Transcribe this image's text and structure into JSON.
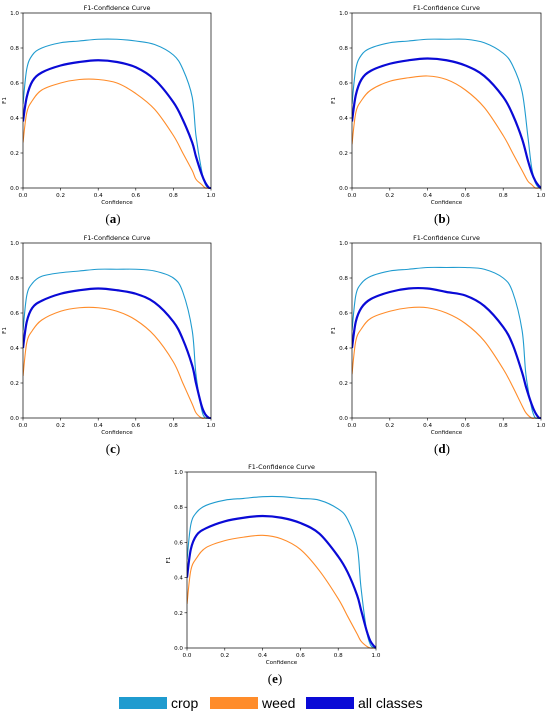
{
  "colors": {
    "crop": "#1f9bcf",
    "weed": "#ff8c2a",
    "all": "#0a0ad6"
  },
  "legend": [
    {
      "label": "crop",
      "color": "#1f9bcf"
    },
    {
      "label": "weed",
      "color": "#ff8c2a"
    },
    {
      "label": "all classes",
      "color": "#0a0ad6"
    }
  ],
  "chart_data": [
    {
      "type": "line",
      "caption_letter": "a",
      "title": "F1-Confidence Curve",
      "xlabel": "Confidence",
      "ylabel": "F1",
      "xlim": [
        0,
        1
      ],
      "ylim": [
        0,
        1
      ],
      "xticks": [
        "0.0",
        "0.2",
        "0.4",
        "0.6",
        "0.8",
        "1.0"
      ],
      "yticks": [
        "0.0",
        "0.2",
        "0.4",
        "0.6",
        "0.8",
        "1.0"
      ],
      "x": [
        0,
        0.02,
        0.05,
        0.1,
        0.2,
        0.3,
        0.4,
        0.5,
        0.6,
        0.7,
        0.8,
        0.85,
        0.9,
        0.92,
        0.95,
        0.97,
        0.99,
        1.0
      ],
      "series": [
        {
          "name": "crop",
          "values": [
            0.48,
            0.68,
            0.76,
            0.8,
            0.83,
            0.84,
            0.85,
            0.85,
            0.84,
            0.82,
            0.76,
            0.68,
            0.52,
            0.3,
            0.1,
            0.02,
            0.0,
            0.0
          ]
        },
        {
          "name": "weed",
          "values": [
            0.26,
            0.43,
            0.5,
            0.56,
            0.6,
            0.62,
            0.62,
            0.6,
            0.54,
            0.45,
            0.3,
            0.2,
            0.1,
            0.05,
            0.02,
            0.0,
            0.0,
            0.0
          ]
        },
        {
          "name": "all classes",
          "values": [
            0.38,
            0.52,
            0.61,
            0.66,
            0.7,
            0.72,
            0.73,
            0.72,
            0.69,
            0.62,
            0.49,
            0.39,
            0.26,
            0.18,
            0.08,
            0.03,
            0.0,
            0.0
          ]
        }
      ]
    },
    {
      "type": "line",
      "caption_letter": "b",
      "title": "F1-Confidence Curve",
      "xlabel": "Confidence",
      "ylabel": "F1",
      "xlim": [
        0,
        1
      ],
      "ylim": [
        0,
        1
      ],
      "xticks": [
        "0.0",
        "0.2",
        "0.4",
        "0.6",
        "0.8",
        "1.0"
      ],
      "yticks": [
        "0.0",
        "0.2",
        "0.4",
        "0.6",
        "0.8",
        "1.0"
      ],
      "x": [
        0,
        0.02,
        0.05,
        0.1,
        0.2,
        0.3,
        0.4,
        0.5,
        0.6,
        0.7,
        0.8,
        0.85,
        0.9,
        0.93,
        0.95,
        0.97,
        0.99,
        1.0
      ],
      "series": [
        {
          "name": "crop",
          "values": [
            0.48,
            0.68,
            0.76,
            0.8,
            0.83,
            0.84,
            0.85,
            0.85,
            0.85,
            0.83,
            0.77,
            0.7,
            0.55,
            0.3,
            0.12,
            0.03,
            0.0,
            0.0
          ]
        },
        {
          "name": "weed",
          "values": [
            0.25,
            0.43,
            0.5,
            0.56,
            0.61,
            0.63,
            0.64,
            0.62,
            0.56,
            0.46,
            0.3,
            0.2,
            0.1,
            0.04,
            0.02,
            0.0,
            0.0,
            0.0
          ]
        },
        {
          "name": "all classes",
          "values": [
            0.38,
            0.53,
            0.62,
            0.67,
            0.71,
            0.73,
            0.74,
            0.73,
            0.7,
            0.64,
            0.52,
            0.42,
            0.28,
            0.16,
            0.09,
            0.04,
            0.01,
            0.0
          ]
        }
      ]
    },
    {
      "type": "line",
      "caption_letter": "c",
      "title": "F1-Confidence Curve",
      "xlabel": "Confidence",
      "ylabel": "F1",
      "xlim": [
        0,
        1
      ],
      "ylim": [
        0,
        1
      ],
      "xticks": [
        "0.0",
        "0.2",
        "0.4",
        "0.6",
        "0.8",
        "1.0"
      ],
      "yticks": [
        "0.0",
        "0.2",
        "0.4",
        "0.6",
        "0.8",
        "1.0"
      ],
      "x": [
        0,
        0.02,
        0.05,
        0.1,
        0.2,
        0.3,
        0.4,
        0.5,
        0.6,
        0.7,
        0.8,
        0.85,
        0.9,
        0.92,
        0.95,
        0.97,
        0.99,
        1.0
      ],
      "series": [
        {
          "name": "crop",
          "values": [
            0.5,
            0.7,
            0.77,
            0.81,
            0.83,
            0.84,
            0.85,
            0.85,
            0.85,
            0.84,
            0.8,
            0.72,
            0.5,
            0.25,
            0.05,
            0.0,
            0.0,
            0.0
          ]
        },
        {
          "name": "weed",
          "values": [
            0.24,
            0.43,
            0.5,
            0.56,
            0.61,
            0.63,
            0.63,
            0.61,
            0.56,
            0.47,
            0.32,
            0.2,
            0.08,
            0.03,
            0.0,
            0.0,
            0.0,
            0.0
          ]
        },
        {
          "name": "all classes",
          "values": [
            0.4,
            0.55,
            0.63,
            0.67,
            0.71,
            0.73,
            0.74,
            0.73,
            0.71,
            0.66,
            0.55,
            0.45,
            0.3,
            0.2,
            0.07,
            0.02,
            0.0,
            0.0
          ]
        }
      ]
    },
    {
      "type": "line",
      "caption_letter": "d",
      "title": "F1-Confidence Curve",
      "xlabel": "Confidence",
      "ylabel": "F1",
      "xlim": [
        0,
        1
      ],
      "ylim": [
        0,
        1
      ],
      "xticks": [
        "0.0",
        "0.2",
        "0.4",
        "0.6",
        "0.8",
        "1.0"
      ],
      "yticks": [
        "0.0",
        "0.2",
        "0.4",
        "0.6",
        "0.8",
        "1.0"
      ],
      "x": [
        0,
        0.02,
        0.05,
        0.1,
        0.2,
        0.3,
        0.4,
        0.5,
        0.6,
        0.7,
        0.8,
        0.85,
        0.9,
        0.92,
        0.95,
        0.97,
        0.99,
        1.0
      ],
      "series": [
        {
          "name": "crop",
          "values": [
            0.5,
            0.7,
            0.77,
            0.81,
            0.84,
            0.85,
            0.86,
            0.86,
            0.86,
            0.85,
            0.8,
            0.72,
            0.5,
            0.25,
            0.06,
            0.0,
            0.0,
            0.0
          ]
        },
        {
          "name": "weed",
          "values": [
            0.25,
            0.44,
            0.51,
            0.57,
            0.61,
            0.63,
            0.63,
            0.6,
            0.54,
            0.44,
            0.28,
            0.18,
            0.07,
            0.03,
            0.0,
            0.0,
            0.0,
            0.0
          ]
        },
        {
          "name": "all classes",
          "values": [
            0.4,
            0.55,
            0.63,
            0.68,
            0.72,
            0.74,
            0.74,
            0.72,
            0.7,
            0.64,
            0.52,
            0.42,
            0.26,
            0.18,
            0.08,
            0.03,
            0.0,
            0.0
          ]
        }
      ]
    },
    {
      "type": "line",
      "caption_letter": "e",
      "title": "F1-Confidence Curve",
      "xlabel": "Confidence",
      "ylabel": "F1",
      "xlim": [
        0,
        1
      ],
      "ylim": [
        0,
        1
      ],
      "xticks": [
        "0.0",
        "0.2",
        "0.4",
        "0.6",
        "0.8",
        "1.0"
      ],
      "yticks": [
        "0.0",
        "0.2",
        "0.4",
        "0.6",
        "0.8",
        "1.0"
      ],
      "x": [
        0,
        0.02,
        0.05,
        0.1,
        0.2,
        0.3,
        0.4,
        0.5,
        0.6,
        0.7,
        0.8,
        0.85,
        0.9,
        0.92,
        0.95,
        0.97,
        0.99,
        1.0
      ],
      "series": [
        {
          "name": "crop",
          "values": [
            0.5,
            0.7,
            0.77,
            0.81,
            0.84,
            0.85,
            0.86,
            0.86,
            0.85,
            0.84,
            0.79,
            0.73,
            0.58,
            0.35,
            0.1,
            0.02,
            0.0,
            0.0
          ]
        },
        {
          "name": "weed",
          "values": [
            0.25,
            0.44,
            0.51,
            0.57,
            0.61,
            0.63,
            0.64,
            0.62,
            0.56,
            0.44,
            0.28,
            0.18,
            0.08,
            0.04,
            0.01,
            0.0,
            0.0,
            0.0
          ]
        },
        {
          "name": "all classes",
          "values": [
            0.4,
            0.56,
            0.64,
            0.68,
            0.72,
            0.74,
            0.75,
            0.74,
            0.71,
            0.65,
            0.52,
            0.43,
            0.3,
            0.22,
            0.1,
            0.04,
            0.01,
            0.0
          ]
        }
      ]
    }
  ]
}
